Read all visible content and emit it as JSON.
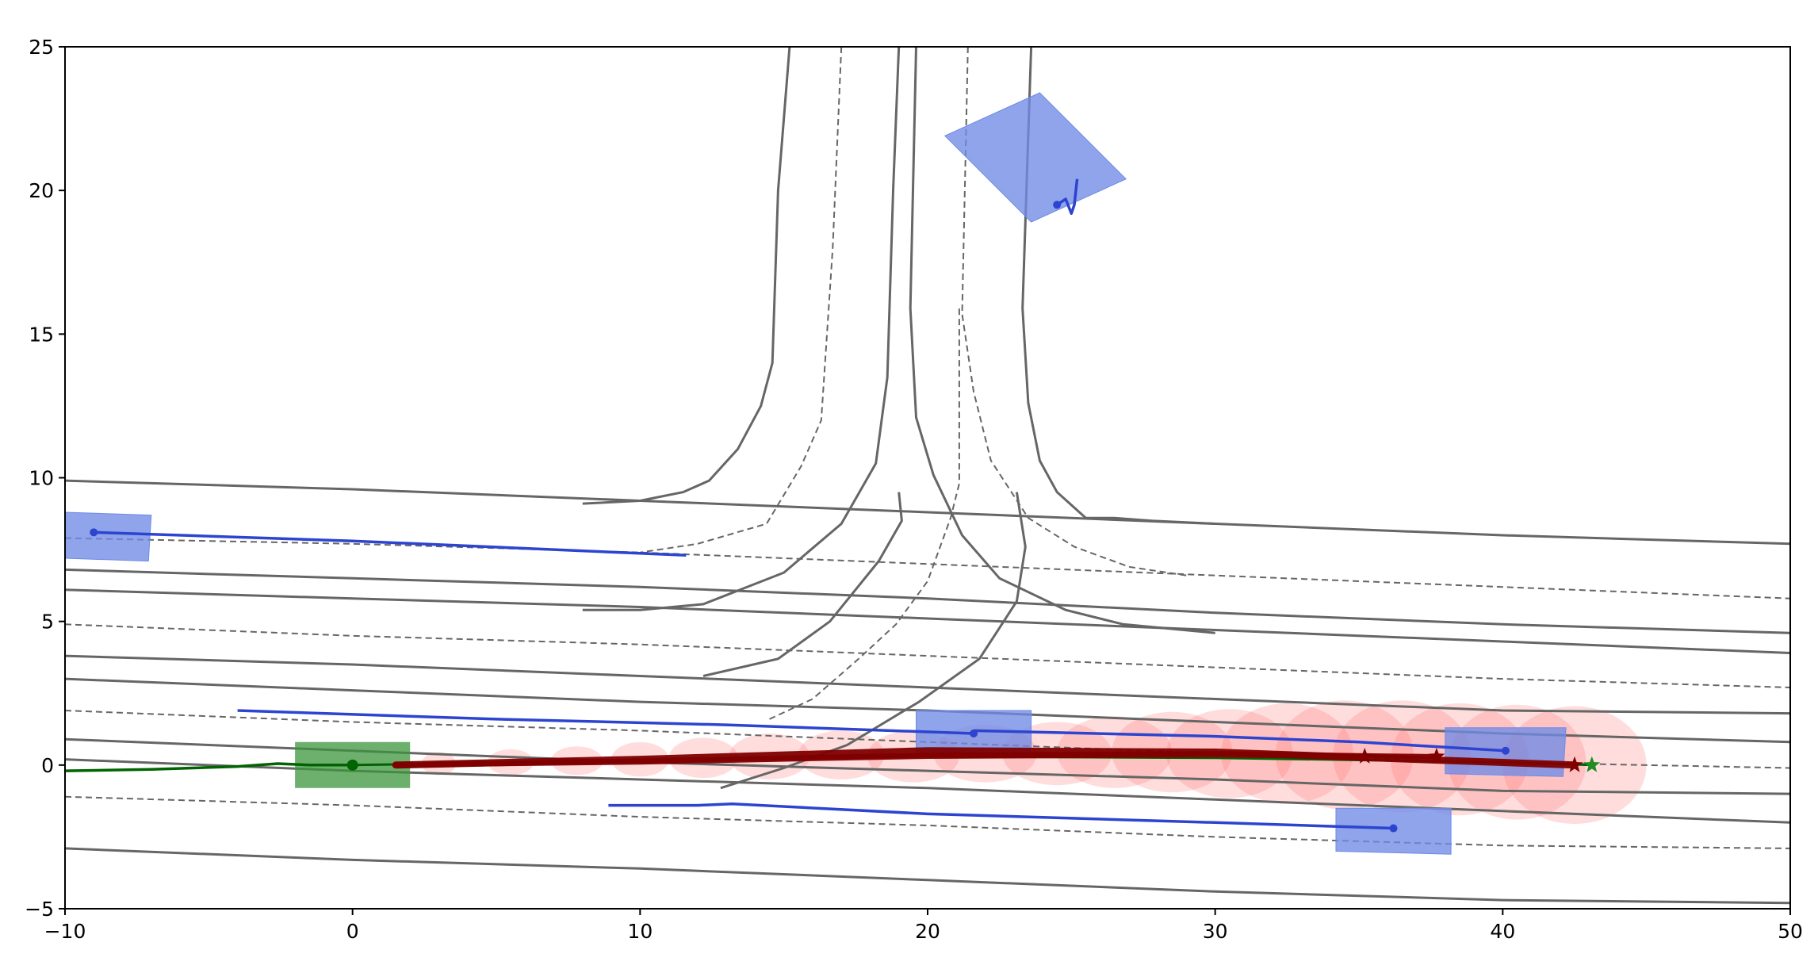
{
  "chart_data": {
    "type": "scatter",
    "title": "",
    "xlabel": "",
    "ylabel": "",
    "xlim": [
      -10,
      50
    ],
    "ylim": [
      -5,
      25
    ],
    "xticks": [
      -10,
      0,
      10,
      20,
      30,
      40,
      50
    ],
    "yticks": [
      -5,
      0,
      5,
      10,
      15,
      20,
      25
    ],
    "xtick_labels": [
      "−10",
      "0",
      "10",
      "20",
      "30",
      "40",
      "50"
    ],
    "ytick_labels": [
      "−5",
      "0",
      "5",
      "10",
      "15",
      "20",
      "25"
    ],
    "grid": false,
    "legend": "none",
    "colors": {
      "road": "#666666",
      "ego": "#006400",
      "ego_box": "#3c963c",
      "agent": "#2c44d0",
      "agent_box": "#6f8ae6",
      "prediction": "#800000",
      "uncertainty": "#ff6666"
    },
    "road_solid": [
      [
        [
          -10,
          9.9
        ],
        [
          0,
          9.6
        ],
        [
          10,
          9.2
        ],
        [
          20,
          8.8
        ],
        [
          30,
          8.4
        ],
        [
          40,
          8.0
        ],
        [
          50,
          7.7
        ]
      ],
      [
        [
          -10,
          6.8
        ],
        [
          0,
          6.5
        ],
        [
          10,
          6.2
        ],
        [
          20,
          5.8
        ],
        [
          30,
          5.3
        ],
        [
          40,
          4.9
        ],
        [
          50,
          4.6
        ]
      ],
      [
        [
          -10,
          6.1
        ],
        [
          0,
          5.8
        ],
        [
          10,
          5.5
        ],
        [
          20,
          5.1
        ],
        [
          30,
          4.7
        ],
        [
          40,
          4.3
        ],
        [
          50,
          3.9
        ]
      ],
      [
        [
          -10,
          3.8
        ],
        [
          0,
          3.5
        ],
        [
          10,
          3.1
        ],
        [
          20,
          2.7
        ],
        [
          30,
          2.3
        ],
        [
          40,
          1.9
        ],
        [
          50,
          1.8
        ]
      ],
      [
        [
          -10,
          3.0
        ],
        [
          0,
          2.6
        ],
        [
          10,
          2.2
        ],
        [
          20,
          1.9
        ],
        [
          30,
          1.5
        ],
        [
          40,
          1.1
        ],
        [
          50,
          0.8
        ]
      ],
      [
        [
          -10,
          0.9
        ],
        [
          0,
          0.5
        ],
        [
          10,
          0.1
        ],
        [
          20,
          -0.2
        ],
        [
          30,
          -0.5
        ],
        [
          40,
          -0.9
        ],
        [
          50,
          -1.0
        ]
      ],
      [
        [
          -10,
          0.2
        ],
        [
          0,
          -0.2
        ],
        [
          10,
          -0.5
        ],
        [
          20,
          -0.8
        ],
        [
          30,
          -1.2
        ],
        [
          40,
          -1.6
        ],
        [
          50,
          -2.0
        ]
      ],
      [
        [
          -10,
          -2.9
        ],
        [
          0,
          -3.3
        ],
        [
          10,
          -3.6
        ],
        [
          20,
          -4.0
        ],
        [
          30,
          -4.4
        ],
        [
          40,
          -4.7
        ],
        [
          50,
          -4.8
        ]
      ],
      [
        [
          15.2,
          25
        ],
        [
          14.8,
          20
        ],
        [
          14.6,
          14
        ],
        [
          14.2,
          12.5
        ],
        [
          13.4,
          11
        ],
        [
          12.4,
          9.9
        ],
        [
          11.5,
          9.5
        ],
        [
          10.0,
          9.2
        ],
        [
          8,
          9.1
        ]
      ],
      [
        [
          19.0,
          25
        ],
        [
          18.8,
          20
        ],
        [
          18.6,
          13.5
        ],
        [
          18.2,
          10.5
        ],
        [
          17.0,
          8.4
        ],
        [
          15,
          6.7
        ],
        [
          12.2,
          5.6
        ],
        [
          10,
          5.4
        ],
        [
          8,
          5.4
        ]
      ],
      [
        [
          19.6,
          25
        ],
        [
          19.4,
          15.9
        ],
        [
          19.6,
          12.1
        ],
        [
          20.2,
          10.1
        ],
        [
          21.2,
          8.0
        ],
        [
          22.5,
          6.5
        ],
        [
          24.8,
          5.4
        ],
        [
          26.8,
          4.9
        ],
        [
          30,
          4.6
        ]
      ],
      [
        [
          23.6,
          25
        ],
        [
          23.3,
          15.9
        ],
        [
          23.5,
          12.6
        ],
        [
          23.9,
          10.6
        ],
        [
          24.5,
          9.5
        ],
        [
          25.5,
          8.6
        ],
        [
          26.5,
          8.6
        ],
        [
          27.8,
          8.5
        ],
        [
          30,
          8.4
        ]
      ],
      [
        [
          12.2,
          3.1
        ],
        [
          14.8,
          3.7
        ],
        [
          16.6,
          5.0
        ],
        [
          18.3,
          7.1
        ],
        [
          19.1,
          8.5
        ],
        [
          19.0,
          9.5
        ]
      ],
      [
        [
          12.8,
          -0.8
        ],
        [
          15.0,
          -0.1
        ],
        [
          17.2,
          0.7
        ],
        [
          19.7,
          2.2
        ],
        [
          21.8,
          3.7
        ],
        [
          23.1,
          5.7
        ],
        [
          23.4,
          7.6
        ],
        [
          23.1,
          9.5
        ]
      ]
    ],
    "road_dashed": [
      [
        [
          -10,
          7.9
        ],
        [
          0,
          7.7
        ],
        [
          10,
          7.4
        ],
        [
          20,
          7.0
        ],
        [
          30,
          6.6
        ],
        [
          40,
          6.2
        ],
        [
          50,
          5.8
        ]
      ],
      [
        [
          -10,
          4.9
        ],
        [
          0,
          4.5
        ],
        [
          10,
          4.2
        ],
        [
          20,
          3.8
        ],
        [
          30,
          3.4
        ],
        [
          40,
          3.0
        ],
        [
          50,
          2.7
        ]
      ],
      [
        [
          -10,
          1.9
        ],
        [
          0,
          1.5
        ],
        [
          10,
          1.2
        ],
        [
          20,
          0.8
        ],
        [
          30,
          0.4
        ],
        [
          40,
          0.1
        ],
        [
          50,
          -0.1
        ]
      ],
      [
        [
          -10,
          -1.1
        ],
        [
          0,
          -1.4
        ],
        [
          10,
          -1.8
        ],
        [
          20,
          -2.1
        ],
        [
          30,
          -2.5
        ],
        [
          40,
          -2.8
        ],
        [
          50,
          -2.9
        ]
      ],
      [
        [
          17.0,
          25
        ],
        [
          16.7,
          18
        ],
        [
          16.3,
          12
        ],
        [
          15.6,
          10.4
        ],
        [
          14.4,
          8.4
        ],
        [
          12,
          7.7
        ],
        [
          10,
          7.4
        ]
      ],
      [
        [
          21.4,
          25
        ],
        [
          21.2,
          15.7
        ],
        [
          21.6,
          13
        ],
        [
          22.2,
          10.6
        ],
        [
          23.5,
          8.6
        ],
        [
          25.1,
          7.6
        ],
        [
          27,
          6.9
        ],
        [
          29,
          6.6
        ]
      ],
      [
        [
          14.5,
          1.6
        ],
        [
          16.0,
          2.3
        ],
        [
          17.6,
          3.7
        ],
        [
          18.9,
          4.9
        ],
        [
          20.0,
          6.4
        ],
        [
          20.8,
          8.6
        ],
        [
          21.1,
          9.8
        ],
        [
          21.1,
          15.9
        ]
      ]
    ],
    "ego": {
      "position": [
        0,
        0
      ],
      "box_corners": [
        [
          -2,
          0.8
        ],
        [
          2,
          0.8
        ],
        [
          2,
          -0.8
        ],
        [
          -2,
          -0.8
        ]
      ],
      "history": [
        [
          -10,
          -0.2
        ],
        [
          -7,
          -0.15
        ],
        [
          -4,
          -0.05
        ],
        [
          -2.6,
          0.05
        ],
        [
          -1.5,
          0
        ],
        [
          0,
          0
        ]
      ],
      "future": [
        [
          0,
          0
        ],
        [
          10,
          0.15
        ],
        [
          20,
          0.3
        ],
        [
          30,
          0.25
        ],
        [
          40,
          0.1
        ],
        [
          43.1,
          0.0
        ]
      ],
      "goal_star": [
        43.1,
        0.0
      ]
    },
    "agents": [
      {
        "position": [
          -9.0,
          8.1
        ],
        "box_corners": [
          [
            -10,
            8.8
          ],
          [
            -7,
            8.7
          ],
          [
            -7.1,
            7.1
          ],
          [
            -10,
            7.2
          ]
        ],
        "history": [
          [
            -9.0,
            8.1
          ],
          [
            0,
            7.8
          ],
          [
            11.6,
            7.3
          ]
        ]
      },
      {
        "position": [
          24.5,
          19.5
        ],
        "box_corners": [
          [
            23.9,
            23.4
          ],
          [
            26.9,
            20.4
          ],
          [
            23.6,
            18.9
          ],
          [
            20.6,
            21.9
          ]
        ],
        "history": [
          [
            24.5,
            19.5
          ],
          [
            24.8,
            19.7
          ],
          [
            25.0,
            19.2
          ],
          [
            25.1,
            19.5
          ],
          [
            25.2,
            20.4
          ]
        ]
      },
      {
        "position": [
          21.6,
          1.1
        ],
        "box_corners": [
          [
            19.6,
            1.9
          ],
          [
            23.6,
            1.9
          ],
          [
            23.6,
            0.4
          ],
          [
            19.6,
            0.4
          ]
        ],
        "history": [
          [
            -4,
            1.9
          ],
          [
            5,
            1.6
          ],
          [
            13,
            1.4
          ],
          [
            21.6,
            1.1
          ]
        ]
      },
      {
        "position": [
          40.1,
          0.5
        ],
        "box_corners": [
          [
            38.0,
            1.3
          ],
          [
            42.2,
            1.3
          ],
          [
            42.1,
            -0.4
          ],
          [
            38.0,
            -0.3
          ]
        ],
        "history": [
          [
            21.6,
            1.2
          ],
          [
            30,
            1.0
          ],
          [
            35,
            0.8
          ],
          [
            40.1,
            0.5
          ]
        ]
      },
      {
        "position": [
          36.2,
          -2.2
        ],
        "box_corners": [
          [
            34.2,
            -1.5
          ],
          [
            38.2,
            -1.5
          ],
          [
            38.2,
            -3.1
          ],
          [
            34.2,
            -3.0
          ]
        ],
        "history": [
          [
            8.9,
            -1.4
          ],
          [
            12,
            -1.4
          ],
          [
            13.2,
            -1.35
          ],
          [
            20,
            -1.7
          ],
          [
            30,
            -2.0
          ],
          [
            36.2,
            -2.2
          ]
        ]
      }
    ],
    "predictions": [
      {
        "path": [
          [
            1.5,
            0.0
          ],
          [
            10,
            0.2
          ],
          [
            20,
            0.5
          ],
          [
            30,
            0.45
          ],
          [
            42.5,
            0.0
          ]
        ],
        "end_star": [
          42.5,
          0.0
        ]
      },
      {
        "path": [
          [
            1.5,
            0.0
          ],
          [
            10,
            0.15
          ],
          [
            20,
            0.35
          ],
          [
            30,
            0.4
          ],
          [
            37.7,
            0.3
          ]
        ],
        "end_star": [
          37.7,
          0.3
        ]
      },
      {
        "path": [
          [
            1.5,
            0.0
          ],
          [
            10,
            0.1
          ],
          [
            20,
            0.3
          ],
          [
            30,
            0.35
          ],
          [
            35.2,
            0.3
          ]
        ],
        "end_star": [
          35.2,
          0.3
        ]
      }
    ],
    "uncertainty_ellipses": [
      {
        "x": 3,
        "y": 0.05,
        "rx": 0.6,
        "ry": 0.4
      },
      {
        "x": 5.5,
        "y": 0.1,
        "rx": 0.8,
        "ry": 0.45
      },
      {
        "x": 7.8,
        "y": 0.15,
        "rx": 0.9,
        "ry": 0.5
      },
      {
        "x": 10,
        "y": 0.2,
        "rx": 1.0,
        "ry": 0.6
      },
      {
        "x": 12.2,
        "y": 0.25,
        "rx": 1.2,
        "ry": 0.7
      },
      {
        "x": 14.5,
        "y": 0.3,
        "rx": 1.4,
        "ry": 0.8
      },
      {
        "x": 17,
        "y": 0.35,
        "rx": 1.5,
        "ry": 0.85
      },
      {
        "x": 19.5,
        "y": 0.3,
        "rx": 1.6,
        "ry": 0.9
      },
      {
        "x": 22,
        "y": 0.4,
        "rx": 1.8,
        "ry": 1.0
      },
      {
        "x": 24.5,
        "y": 0.4,
        "rx": 1.9,
        "ry": 1.1
      },
      {
        "x": 26.5,
        "y": 0.45,
        "rx": 2.0,
        "ry": 1.25
      },
      {
        "x": 28.5,
        "y": 0.45,
        "rx": 2.1,
        "ry": 1.4
      },
      {
        "x": 30.5,
        "y": 0.4,
        "rx": 2.2,
        "ry": 1.55
      },
      {
        "x": 32.5,
        "y": 0.4,
        "rx": 2.3,
        "ry": 1.75
      },
      {
        "x": 34.5,
        "y": 0.35,
        "rx": 2.4,
        "ry": 1.9
      },
      {
        "x": 36.5,
        "y": 0.3,
        "rx": 2.4,
        "ry": 1.95
      },
      {
        "x": 38.5,
        "y": 0.2,
        "rx": 2.4,
        "ry": 1.95
      },
      {
        "x": 40.5,
        "y": 0.1,
        "rx": 2.4,
        "ry": 2.0
      },
      {
        "x": 42.5,
        "y": 0.0,
        "rx": 2.5,
        "ry": 2.05
      }
    ]
  }
}
